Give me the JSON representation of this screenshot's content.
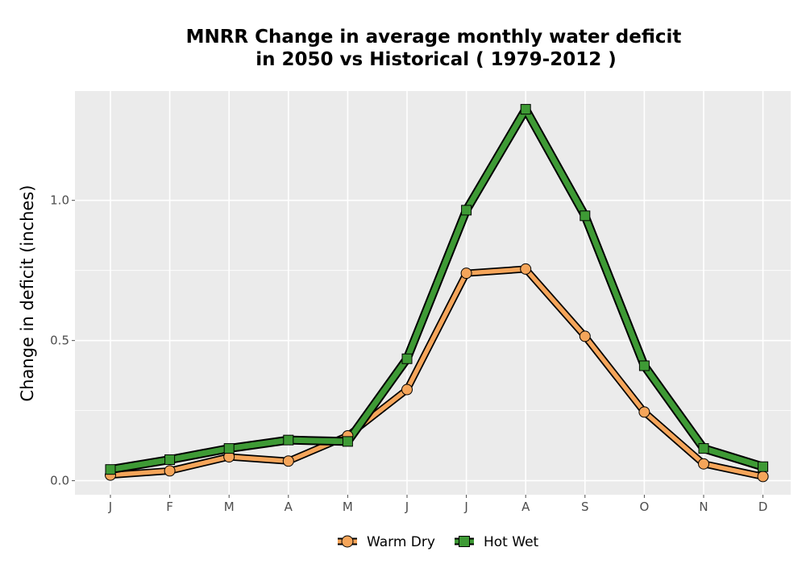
{
  "chart_data": {
    "type": "line",
    "title_lines": [
      "MNRR  Change in average monthly water deficit",
      "in 2050 vs Historical ( 1979-2012 )"
    ],
    "xlabel": "",
    "ylabel": "Change in deficit (inches)",
    "categories": [
      "J",
      "F",
      "M",
      "A",
      "M",
      "J",
      "J",
      "A",
      "S",
      "O",
      "N",
      "D"
    ],
    "yticks": [
      0.0,
      0.5,
      1.0
    ],
    "ytick_labels": [
      "0.0",
      "0.5",
      "1.0"
    ],
    "ylim": [
      -0.05,
      1.39
    ],
    "grid": true,
    "legend_position": "bottom",
    "series": [
      {
        "name": "Warm Dry",
        "marker": "circle",
        "color": "#f5a55a",
        "values": [
          0.02,
          0.035,
          0.085,
          0.07,
          0.16,
          0.325,
          0.74,
          0.755,
          0.515,
          0.245,
          0.06,
          0.015
        ]
      },
      {
        "name": "Hot Wet",
        "marker": "square",
        "color": "#3e9a35",
        "values": [
          0.04,
          0.075,
          0.115,
          0.145,
          0.14,
          0.435,
          0.965,
          1.325,
          0.945,
          0.41,
          0.115,
          0.05
        ]
      }
    ],
    "colors": {
      "panel_background": "#ebebeb",
      "gridline": "#ffffff",
      "outline": "#000000"
    }
  }
}
